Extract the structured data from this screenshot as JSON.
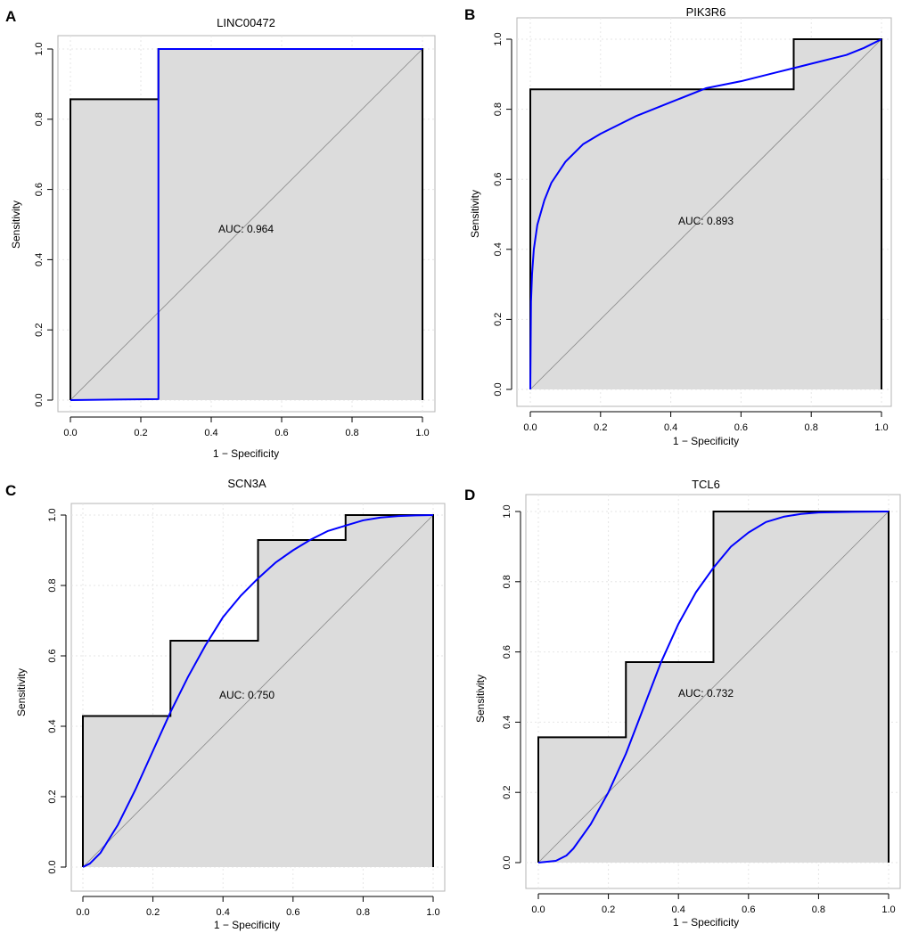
{
  "figure": {
    "panel_letters": [
      "A",
      "B",
      "C",
      "D"
    ]
  },
  "chart_data": [
    {
      "type": "line",
      "panel": "A",
      "title": "LINC00472",
      "xlabel": "1 − Specificity",
      "ylabel": "Sensitivity",
      "xlim": [
        0,
        1
      ],
      "ylim": [
        0,
        1
      ],
      "xticks": [
        "0.0",
        "0.2",
        "0.4",
        "0.6",
        "0.8",
        "1.0"
      ],
      "yticks": [
        "0.0",
        "0.2",
        "0.4",
        "0.6",
        "0.8",
        "1.0"
      ],
      "grid": true,
      "auc_label": "AUC: 0.964",
      "colors": {
        "empirical": "#000000",
        "smooth": "#0000ff",
        "fill": "#dcdcdc",
        "diagonal": "#888888"
      },
      "series": [
        {
          "name": "empirical",
          "x": [
            0,
            0,
            0.25,
            0.25,
            1,
            1
          ],
          "y": [
            0,
            0.857,
            0.857,
            1,
            1,
            0
          ]
        },
        {
          "name": "smooth",
          "x": [
            0,
            0.25,
            0.25,
            1
          ],
          "y": [
            0,
            0.003,
            1,
            1
          ]
        }
      ]
    },
    {
      "type": "line",
      "panel": "B",
      "title": "PIK3R6",
      "xlabel": "1 − Specificity",
      "ylabel": "Sensitivity",
      "xlim": [
        0,
        1
      ],
      "ylim": [
        0,
        1
      ],
      "xticks": [
        "0.0",
        "0.2",
        "0.4",
        "0.6",
        "0.8",
        "1.0"
      ],
      "yticks": [
        "0.0",
        "0.2",
        "0.4",
        "0.6",
        "0.8",
        "1.0"
      ],
      "grid": true,
      "auc_label": "AUC: 0.893",
      "colors": {
        "empirical": "#000000",
        "smooth": "#0000ff",
        "fill": "#dcdcdc",
        "diagonal": "#888888"
      },
      "series": [
        {
          "name": "empirical",
          "x": [
            0,
            0,
            0.75,
            0.75,
            1,
            1
          ],
          "y": [
            0,
            0.857,
            0.857,
            1,
            1,
            0
          ]
        },
        {
          "name": "smooth",
          "x": [
            0,
            0.002,
            0.005,
            0.01,
            0.02,
            0.04,
            0.06,
            0.1,
            0.15,
            0.2,
            0.3,
            0.4,
            0.5,
            0.6,
            0.7,
            0.8,
            0.9,
            0.95,
            1
          ],
          "y": [
            0,
            0.25,
            0.33,
            0.4,
            0.47,
            0.54,
            0.59,
            0.65,
            0.7,
            0.73,
            0.78,
            0.82,
            0.86,
            0.88,
            0.905,
            0.93,
            0.955,
            0.975,
            1
          ]
        }
      ]
    },
    {
      "type": "line",
      "panel": "C",
      "title": "SCN3A",
      "xlabel": "1 − Specificity",
      "ylabel": "Sensitivity",
      "xlim": [
        0,
        1
      ],
      "ylim": [
        0,
        1
      ],
      "xticks": [
        "0.0",
        "0.2",
        "0.4",
        "0.6",
        "0.8",
        "1.0"
      ],
      "yticks": [
        "0.0",
        "0.2",
        "0.4",
        "0.6",
        "0.8",
        "1.0"
      ],
      "grid": true,
      "auc_label": "AUC: 0.750",
      "colors": {
        "empirical": "#000000",
        "smooth": "#0000ff",
        "fill": "#dcdcdc",
        "diagonal": "#888888"
      },
      "series": [
        {
          "name": "empirical",
          "x": [
            0,
            0,
            0.25,
            0.25,
            0.5,
            0.5,
            0.75,
            0.75,
            1,
            1
          ],
          "y": [
            0,
            0.429,
            0.429,
            0.643,
            0.643,
            0.929,
            0.929,
            1,
            1,
            0
          ]
        },
        {
          "name": "smooth",
          "x": [
            0,
            0.02,
            0.05,
            0.1,
            0.15,
            0.2,
            0.25,
            0.3,
            0.35,
            0.4,
            0.45,
            0.5,
            0.55,
            0.6,
            0.65,
            0.7,
            0.75,
            0.8,
            0.85,
            0.9,
            0.95,
            1
          ],
          "y": [
            0,
            0.01,
            0.04,
            0.12,
            0.22,
            0.33,
            0.44,
            0.54,
            0.63,
            0.71,
            0.77,
            0.82,
            0.865,
            0.9,
            0.93,
            0.955,
            0.97,
            0.985,
            0.993,
            0.997,
            0.999,
            1
          ]
        }
      ]
    },
    {
      "type": "line",
      "panel": "D",
      "title": "TCL6",
      "xlabel": "1 − Specificity",
      "ylabel": "Sensitivity",
      "xlim": [
        0,
        1
      ],
      "ylim": [
        0,
        1
      ],
      "xticks": [
        "0.0",
        "0.2",
        "0.4",
        "0.6",
        "0.8",
        "1.0"
      ],
      "yticks": [
        "0.0",
        "0.2",
        "0.4",
        "0.6",
        "0.8",
        "1.0"
      ],
      "grid": true,
      "auc_label": "AUC: 0.732",
      "colors": {
        "empirical": "#000000",
        "smooth": "#0000ff",
        "fill": "#dcdcdc",
        "diagonal": "#888888"
      },
      "series": [
        {
          "name": "empirical",
          "x": [
            0,
            0,
            0.25,
            0.25,
            0.5,
            0.5,
            1,
            1
          ],
          "y": [
            0,
            0.357,
            0.357,
            0.571,
            0.571,
            1,
            1,
            0
          ]
        },
        {
          "name": "smooth",
          "x": [
            0,
            0.05,
            0.08,
            0.1,
            0.15,
            0.2,
            0.25,
            0.3,
            0.35,
            0.4,
            0.45,
            0.5,
            0.55,
            0.6,
            0.65,
            0.7,
            0.75,
            0.8,
            0.9,
            1
          ],
          "y": [
            0,
            0.005,
            0.02,
            0.04,
            0.11,
            0.2,
            0.31,
            0.44,
            0.57,
            0.68,
            0.77,
            0.84,
            0.9,
            0.94,
            0.97,
            0.985,
            0.993,
            0.997,
            0.999,
            1
          ]
        }
      ]
    }
  ]
}
